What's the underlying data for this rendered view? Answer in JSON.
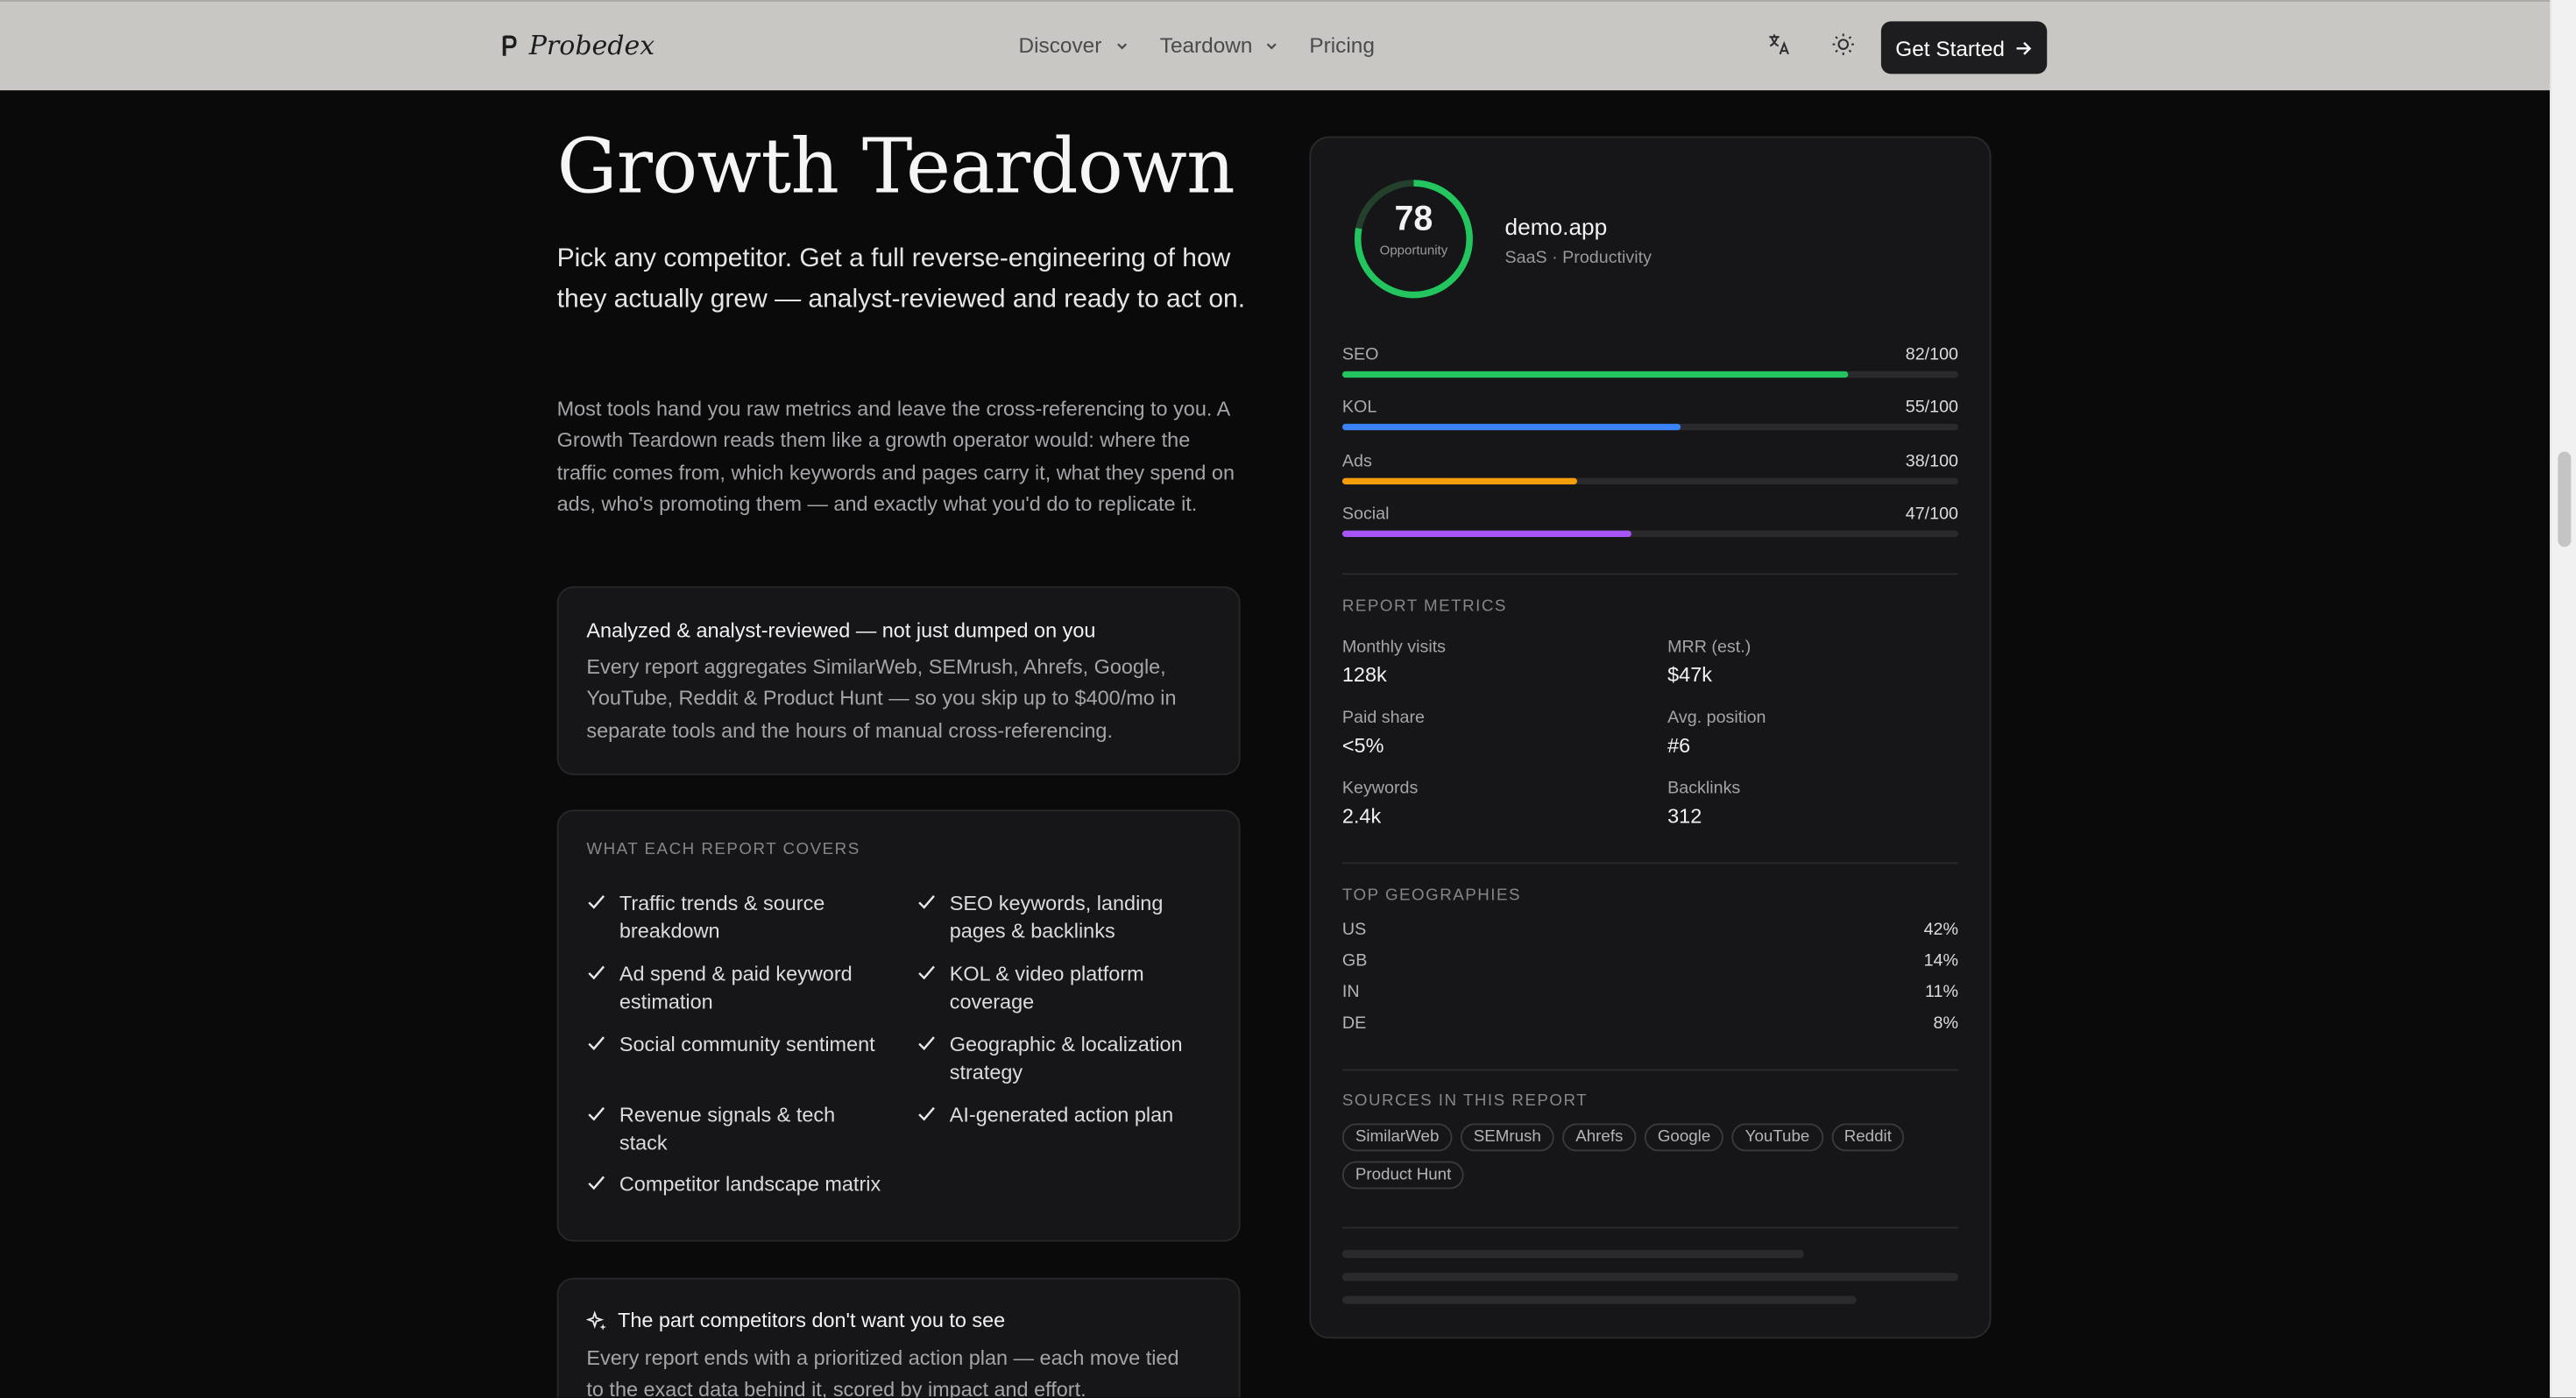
{
  "header": {
    "brand": "Probedex",
    "nav": [
      {
        "label": "Discover",
        "has_menu": true
      },
      {
        "label": "Teardown",
        "has_menu": true
      },
      {
        "label": "Pricing",
        "has_menu": false
      }
    ],
    "translate_icon": "translate-icon",
    "theme_icon": "sun-icon",
    "cta_label": "Get Started"
  },
  "hero": {
    "title": "Growth Teardown",
    "lead": "Pick any competitor. Get a full reverse-engineering of how they actually grew — analyst-reviewed and ready to act on.",
    "body": "Most tools hand you raw metrics and leave the cross-referencing to you. A Growth Teardown reads them like a growth operator would: where the traffic comes from, which keywords and pages carry it, what they spend on ads, who's promoting them — and exactly what you'd do to replicate it."
  },
  "analyzed_card": {
    "title": "Analyzed & analyst-reviewed — not just dumped on you",
    "text": "Every report aggregates SimilarWeb, SEMrush, Ahrefs, Google, YouTube, Reddit & Product Hunt — so you skip up to $400/mo in separate tools and the hours of manual cross-referencing."
  },
  "covers_card": {
    "heading": "WHAT EACH REPORT COVERS",
    "items": [
      "Traffic trends & source breakdown",
      "SEO keywords, landing pages & backlinks",
      "Ad spend & paid keyword estimation",
      "KOL & video platform coverage",
      "Social community sentiment",
      "Geographic & localization strategy",
      "Revenue signals & tech stack",
      "AI-generated action plan",
      "Competitor landscape matrix"
    ]
  },
  "action_card": {
    "icon": "sparkle-icon",
    "title": "The part competitors don't want you to see",
    "text": "Every report ends with a prioritized action plan — each move tied to the exact data behind it, scored by impact and effort."
  },
  "report": {
    "score": "78",
    "score_label": "Opportunity",
    "score_fraction": 0.78,
    "app_name": "demo.app",
    "app_category": "SaaS · Productivity",
    "scores": [
      {
        "label": "SEO",
        "value": 82,
        "display": "82/100",
        "color": "#22c55e"
      },
      {
        "label": "KOL",
        "value": 55,
        "display": "55/100",
        "color": "#3b82f6"
      },
      {
        "label": "Ads",
        "value": 38,
        "display": "38/100",
        "color": "#f59e0b"
      },
      {
        "label": "Social",
        "value": 47,
        "display": "47/100",
        "color": "#a855f7"
      }
    ],
    "metrics_heading": "REPORT METRICS",
    "metrics": [
      {
        "label": "Monthly visits",
        "value": "128k"
      },
      {
        "label": "MRR (est.)",
        "value": "$47k"
      },
      {
        "label": "Paid share",
        "value": "<5%"
      },
      {
        "label": "Avg. position",
        "value": "#6"
      },
      {
        "label": "Keywords",
        "value": "2.4k"
      },
      {
        "label": "Backlinks",
        "value": "312"
      }
    ],
    "geo_heading": "TOP GEOGRAPHIES",
    "geographies": [
      {
        "country": "US",
        "share": "42%"
      },
      {
        "country": "GB",
        "share": "14%"
      },
      {
        "country": "IN",
        "share": "11%"
      },
      {
        "country": "DE",
        "share": "8%"
      }
    ],
    "sources_heading": "SOURCES IN THIS REPORT",
    "sources": [
      "SimilarWeb",
      "SEMrush",
      "Ahrefs",
      "Google",
      "YouTube",
      "Reddit",
      "Product Hunt"
    ]
  }
}
